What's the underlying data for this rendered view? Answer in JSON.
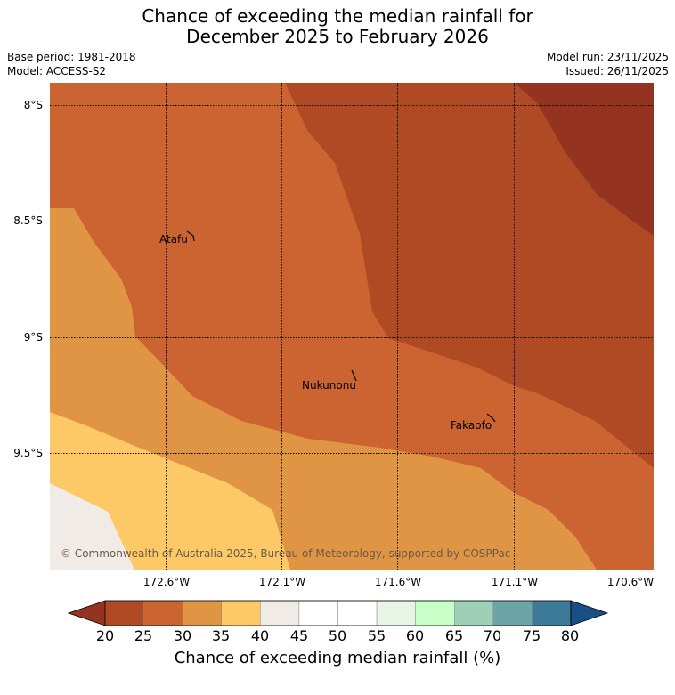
{
  "title": {
    "line1": "Chance of exceeding the median rainfall for",
    "line2": "December 2025 to February 2026"
  },
  "meta": {
    "base_period": "Base period: 1981-2018",
    "model": "Model: ACCESS-S2",
    "model_run": "Model run: 23/11/2025",
    "issued": "Issued: 26/11/2025"
  },
  "map": {
    "lat_labels": [
      "8°S",
      "8.5°S",
      "9°S",
      "9.5°S"
    ],
    "lon_labels": [
      "172.6°W",
      "172.1°W",
      "171.6°W",
      "171.1°W",
      "170.6°W"
    ],
    "places": [
      "Atafu",
      "Nukunonu",
      "Fakaofo"
    ],
    "credit": "© Commonwealth of Australia 2025, Bureau of Meteorology, supported by COSPPac"
  },
  "colorbar": {
    "title": "Chance of exceeding median rainfall (%)",
    "ticks": [
      "20",
      "25",
      "30",
      "35",
      "40",
      "45",
      "50",
      "55",
      "60",
      "65",
      "70",
      "75",
      "80"
    ],
    "colors": [
      "#b04a24",
      "#cb6430",
      "#e09545",
      "#fdc967",
      "#f0ebe6",
      "#ffffff",
      "#ffffff",
      "#e6f5e6",
      "#c8ffc8",
      "#9ed0b7",
      "#6ba5a8",
      "#3d7999"
    ],
    "under_color": "#933320",
    "over_color": "#1a4f85"
  }
}
